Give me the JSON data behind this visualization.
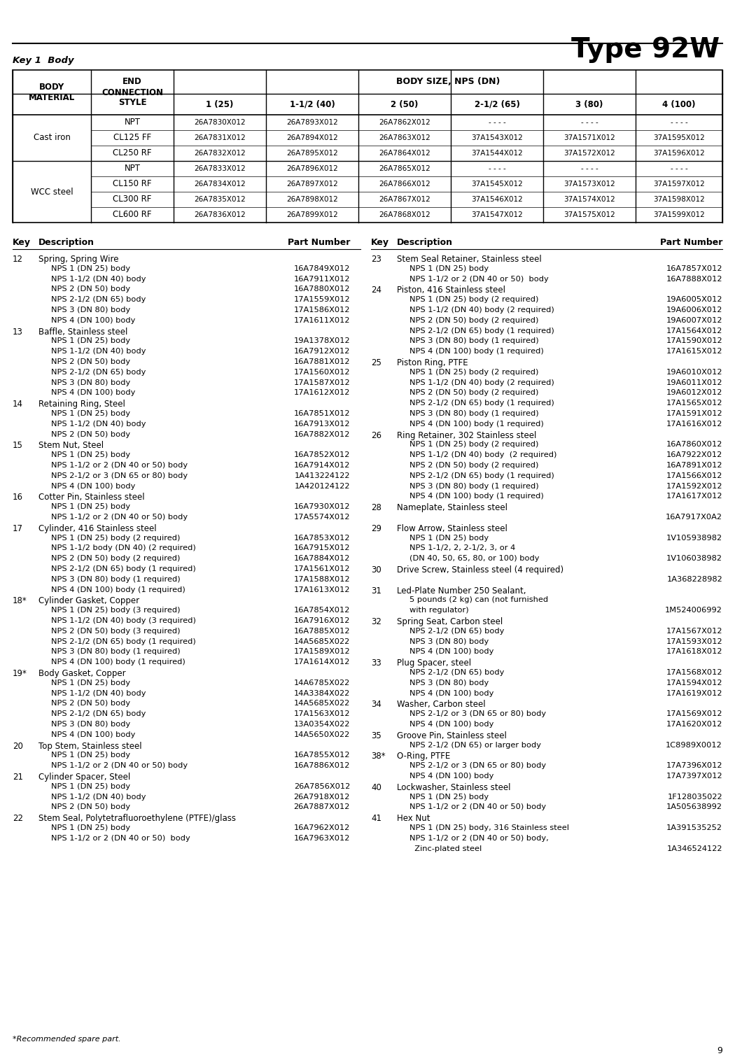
{
  "title": "Type 92W",
  "key1_label": "Key 1  Body",
  "page_number": "9",
  "table_headers": {
    "body_size": "BODY SIZE, NPS (DN)",
    "sizes": [
      "1 (25)",
      "1-1/2 (40)",
      "2 (50)",
      "2-1/2 (65)",
      "3 (80)",
      "4 (100)"
    ]
  },
  "cast_iron_connections": [
    "NPT",
    "CL125 FF",
    "CL250 RF"
  ],
  "cast_iron_data": [
    [
      "26A7830X012",
      "26A7831X012",
      "26A7832X012"
    ],
    [
      "26A7893X012",
      "26A7894X012",
      "26A7895X012"
    ],
    [
      "26A7862X012",
      "26A7863X012",
      "26A7864X012"
    ],
    [
      "- - - -",
      "37A1543X012",
      "37A1544X012"
    ],
    [
      "- - - -",
      "37A1571X012",
      "37A1572X012"
    ],
    [
      "- - - -",
      "37A1595X012",
      "37A1596X012"
    ]
  ],
  "wcc_connections": [
    "NPT",
    "CL150 RF",
    "CL300 RF",
    "CL600 RF"
  ],
  "wcc_data": [
    [
      "26A7833X012",
      "26A7834X012",
      "26A7835X012",
      "26A7836X012"
    ],
    [
      "26A7896X012",
      "26A7897X012",
      "26A7898X012",
      "26A7899X012"
    ],
    [
      "26A7865X012",
      "26A7866X012",
      "26A7867X012",
      "26A7868X012"
    ],
    [
      "- - - -",
      "37A1545X012",
      "37A1546X012",
      "37A1547X012"
    ],
    [
      "- - - -",
      "37A1573X012",
      "37A1574X012",
      "37A1575X012"
    ],
    [
      "- - - -",
      "37A1597X012",
      "37A1598X012",
      "37A1599X012"
    ]
  ],
  "parts_left": [
    {
      "key": "12",
      "desc": "Spring, Spring Wire",
      "sub": [
        [
          "NPS 1 (DN 25) body",
          "16A7849X012"
        ],
        [
          "NPS 1-1/2 (DN 40) body",
          "16A7911X012"
        ],
        [
          "NPS 2 (DN 50) body",
          "16A7880X012"
        ],
        [
          "NPS 2-1/2 (DN 65) body",
          "17A1559X012"
        ],
        [
          "NPS 3 (DN 80) body",
          "17A1586X012"
        ],
        [
          "NPS 4 (DN 100) body",
          "17A1611X012"
        ]
      ]
    },
    {
      "key": "13",
      "desc": "Baffle, Stainless steel",
      "sub": [
        [
          "NPS 1 (DN 25) body",
          "19A1378X012"
        ],
        [
          "NPS 1-1/2 (DN 40) body",
          "16A7912X012"
        ],
        [
          "NPS 2 (DN 50) body",
          "16A7881X012"
        ],
        [
          "NPS 2-1/2 (DN 65) body",
          "17A1560X012"
        ],
        [
          "NPS 3 (DN 80) body",
          "17A1587X012"
        ],
        [
          "NPS 4 (DN 100) body",
          "17A1612X012"
        ]
      ]
    },
    {
      "key": "14",
      "desc": "Retaining Ring, Steel",
      "sub": [
        [
          "NPS 1 (DN 25) body",
          "16A7851X012"
        ],
        [
          "NPS 1-1/2 (DN 40) body",
          "16A7913X012"
        ],
        [
          "NPS 2 (DN 50) body",
          "16A7882X012"
        ]
      ]
    },
    {
      "key": "15",
      "desc": "Stem Nut, Steel",
      "sub": [
        [
          "NPS 1 (DN 25) body",
          "16A7852X012"
        ],
        [
          "NPS 1-1/2 or 2 (DN 40 or 50) body",
          "16A7914X012"
        ],
        [
          "NPS 2-1/2 or 3 (DN 65 or 80) body",
          "1A413224122"
        ],
        [
          "NPS 4 (DN 100) body",
          "1A420124122"
        ]
      ]
    },
    {
      "key": "16",
      "desc": "Cotter Pin, Stainless steel",
      "sub": [
        [
          "NPS 1 (DN 25) body",
          "16A7930X012"
        ],
        [
          "NPS 1-1/2 or 2 (DN 40 or 50) body",
          "17A5574X012"
        ]
      ]
    },
    {
      "key": "17",
      "desc": "Cylinder, 416 Stainless steel",
      "sub": [
        [
          "NPS 1 (DN 25) body (2 required)",
          "16A7853X012"
        ],
        [
          "NPS 1-1/2 body (DN 40) (2 required)",
          "16A7915X012"
        ],
        [
          "NPS 2 (DN 50) body (2 required)",
          "16A7884X012"
        ],
        [
          "NPS 2-1/2 (DN 65) body (1 required)",
          "17A1561X012"
        ],
        [
          "NPS 3 (DN 80) body (1 required)",
          "17A1588X012"
        ],
        [
          "NPS 4 (DN 100) body (1 required)",
          "17A1613X012"
        ]
      ]
    },
    {
      "key": "18*",
      "desc": "Cylinder Gasket, Copper",
      "sub": [
        [
          "NPS 1 (DN 25) body (3 required)",
          "16A7854X012"
        ],
        [
          "NPS 1-1/2 (DN 40) body (3 required)",
          "16A7916X012"
        ],
        [
          "NPS 2 (DN 50) body (3 required)",
          "16A7885X012"
        ],
        [
          "NPS 2-1/2 (DN 65) body (1 required)",
          "14A5685X022"
        ],
        [
          "NPS 3 (DN 80) body (1 required)",
          "17A1589X012"
        ],
        [
          "NPS 4 (DN 100) body (1 required)",
          "17A1614X012"
        ]
      ]
    },
    {
      "key": "19*",
      "desc": "Body Gasket, Copper",
      "sub": [
        [
          "NPS 1 (DN 25) body",
          "14A6785X022"
        ],
        [
          "NPS 1-1/2 (DN 40) body",
          "14A3384X022"
        ],
        [
          "NPS 2 (DN 50) body",
          "14A5685X022"
        ],
        [
          "NPS 2-1/2 (DN 65) body",
          "17A1563X012"
        ],
        [
          "NPS 3 (DN 80) body",
          "13A0354X022"
        ],
        [
          "NPS 4 (DN 100) body",
          "14A5650X022"
        ]
      ]
    },
    {
      "key": "20",
      "desc": "Top Stem, Stainless steel",
      "sub": [
        [
          "NPS 1 (DN 25) body",
          "16A7855X012"
        ],
        [
          "NPS 1-1/2 or 2 (DN 40 or 50) body",
          "16A7886X012"
        ]
      ]
    },
    {
      "key": "21",
      "desc": "Cylinder Spacer, Steel",
      "sub": [
        [
          "NPS 1 (DN 25) body",
          "26A7856X012"
        ],
        [
          "NPS 1-1/2 (DN 40) body",
          "26A7918X012"
        ],
        [
          "NPS 2 (DN 50) body",
          "26A7887X012"
        ]
      ]
    },
    {
      "key": "22",
      "desc": "Stem Seal, Polytetrafluoroethylene (PTFE)/glass",
      "sub": [
        [
          "NPS 1 (DN 25) body",
          "16A7962X012"
        ],
        [
          "NPS 1-1/2 or 2 (DN 40 or 50)  body",
          "16A7963X012"
        ]
      ]
    }
  ],
  "parts_right": [
    {
      "key": "23",
      "desc": "Stem Seal Retainer, Stainless steel",
      "sub": [
        [
          "NPS 1 (DN 25) body",
          "16A7857X012"
        ],
        [
          "NPS 1-1/2 or 2 (DN 40 or 50)  body",
          "16A7888X012"
        ]
      ]
    },
    {
      "key": "24",
      "desc": "Piston, 416 Stainless steel",
      "sub": [
        [
          "NPS 1 (DN 25) body (2 required)",
          "19A6005X012"
        ],
        [
          "NPS 1-1/2 (DN 40) body (2 required)",
          "19A6006X012"
        ],
        [
          "NPS 2 (DN 50) body (2 required)",
          "19A6007X012"
        ],
        [
          "NPS 2-1/2 (DN 65) body (1 required)",
          "17A1564X012"
        ],
        [
          "NPS 3 (DN 80) body (1 required)",
          "17A1590X012"
        ],
        [
          "NPS 4 (DN 100) body (1 required)",
          "17A1615X012"
        ]
      ]
    },
    {
      "key": "25",
      "desc": "Piston Ring, PTFE",
      "sub": [
        [
          "NPS 1 (DN 25) body (2 required)",
          "19A6010X012"
        ],
        [
          "NPS 1-1/2 (DN 40) body (2 required)",
          "19A6011X012"
        ],
        [
          "NPS 2 (DN 50) body (2 required)",
          "19A6012X012"
        ],
        [
          "NPS 2-1/2 (DN 65) body (1 required)",
          "17A1565X012"
        ],
        [
          "NPS 3 (DN 80) body (1 required)",
          "17A1591X012"
        ],
        [
          "NPS 4 (DN 100) body (1 required)",
          "17A1616X012"
        ]
      ]
    },
    {
      "key": "26",
      "desc": "Ring Retainer, 302 Stainless steel",
      "sub": [
        [
          "NPS 1 (DN 25) body (2 required)",
          "16A7860X012"
        ],
        [
          "NPS 1-1/2 (DN 40) body  (2 required)",
          "16A7922X012"
        ],
        [
          "NPS 2 (DN 50) body (2 required)",
          "16A7891X012"
        ],
        [
          "NPS 2-1/2 (DN 65) body (1 required)",
          "17A1566X012"
        ],
        [
          "NPS 3 (DN 80) body (1 required)",
          "17A1592X012"
        ],
        [
          "NPS 4 (DN 100) body (1 required)",
          "17A1617X012"
        ]
      ]
    },
    {
      "key": "28",
      "desc": "Nameplate, Stainless steel",
      "sub": [
        [
          "",
          "16A7917X0A2"
        ]
      ]
    },
    {
      "key": "29",
      "desc": "Flow Arrow, Stainless steel",
      "sub": [
        [
          "NPS 1 (DN 25) body",
          "1V105938982"
        ],
        [
          "NPS 1-1/2, 2, 2-1/2, 3, or 4",
          ""
        ],
        [
          "(DN 40, 50, 65, 80, or 100) body",
          "1V106038982"
        ]
      ]
    },
    {
      "key": "30",
      "desc": "Drive Screw, Stainless steel (4 required)",
      "sub": [
        [
          "",
          "1A368228982"
        ]
      ]
    },
    {
      "key": "31",
      "desc": "Led-Plate Number 250 Sealant,",
      "sub": [
        [
          "5 pounds (2 kg) can (not furnished",
          ""
        ],
        [
          "with regulator)",
          "1M524006992"
        ]
      ]
    },
    {
      "key": "32",
      "desc": "Spring Seat, Carbon steel",
      "sub": [
        [
          "NPS 2-1/2 (DN 65) body",
          "17A1567X012"
        ],
        [
          "NPS 3 (DN 80) body",
          "17A1593X012"
        ],
        [
          "NPS 4 (DN 100) body",
          "17A1618X012"
        ]
      ]
    },
    {
      "key": "33",
      "desc": "Plug Spacer, steel",
      "sub": [
        [
          "NPS 2-1/2 (DN 65) body",
          "17A1568X012"
        ],
        [
          "NPS 3 (DN 80) body",
          "17A1594X012"
        ],
        [
          "NPS 4 (DN 100) body",
          "17A1619X012"
        ]
      ]
    },
    {
      "key": "34",
      "desc": "Washer, Carbon steel",
      "sub": [
        [
          "NPS 2-1/2 or 3 (DN 65 or 80) body",
          "17A1569X012"
        ],
        [
          "NPS 4 (DN 100) body",
          "17A1620X012"
        ]
      ]
    },
    {
      "key": "35",
      "desc": "Groove Pin, Stainless steel",
      "sub": [
        [
          "NPS 2-1/2 (DN 65) or larger body",
          "1C8989X0012"
        ]
      ]
    },
    {
      "key": "38*",
      "desc": "O-Ring, PTFE",
      "sub": [
        [
          "NPS 2-1/2 or 3 (DN 65 or 80) body",
          "17A7396X012"
        ],
        [
          "NPS 4 (DN 100) body",
          "17A7397X012"
        ]
      ]
    },
    {
      "key": "40",
      "desc": "Lockwasher, Stainless steel",
      "sub": [
        [
          "NPS 1 (DN 25) body",
          "1F128035022"
        ],
        [
          "NPS 1-1/2 or 2 (DN 40 or 50) body",
          "1A505638992"
        ]
      ]
    },
    {
      "key": "41",
      "desc": "Hex Nut",
      "sub": [
        [
          "NPS 1 (DN 25) body, 316 Stainless steel",
          "1A391535252"
        ],
        [
          "NPS 1-1/2 or 2 (DN 40 or 50) body,",
          ""
        ],
        [
          "  Zinc-plated steel",
          "1A346524122"
        ]
      ]
    }
  ],
  "footnote": "*Recommended spare part."
}
